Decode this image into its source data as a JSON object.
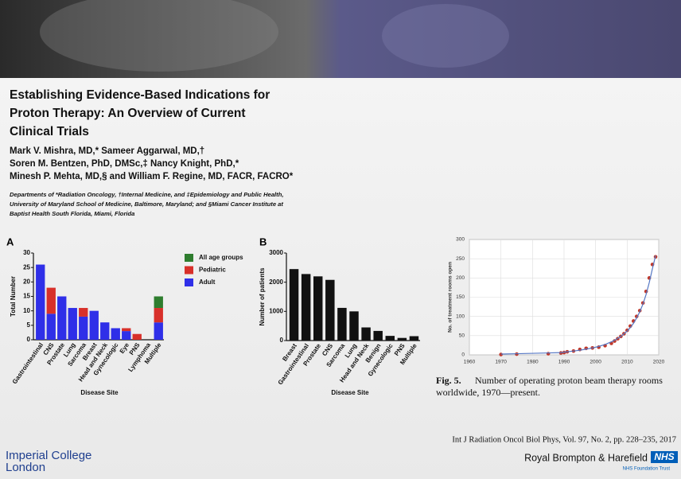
{
  "header": {
    "title_lines": [
      "Establishing Evidence-Based Indications for",
      "Proton Therapy: An Overview of Current",
      "Clinical Trials"
    ],
    "author_lines": [
      "Mark V. Mishra, MD,* Sameer Aggarwal, MD,†",
      "Soren M. Bentzen, PhD, DMSc,‡ Nancy Knight, PhD,*",
      "Minesh P. Mehta, MD,§ and William F. Regine, MD, FACR, FACRO*"
    ],
    "affiliation_lines": [
      "Departments of *Radiation Oncology, †Internal Medicine, and ‡Epidemiology and Public Health,",
      "University of Maryland School of Medicine, Baltimore, Maryland; and §Miami Cancer Institute at",
      "Baptist Health South Florida, Miami, Florida"
    ]
  },
  "chart_data": [
    {
      "type": "bar",
      "stacked": true,
      "panel": "A",
      "xlabel": "Disease Site",
      "ylabel": "Total Number",
      "categories": [
        "Gastrointestinal",
        "CNS",
        "Prostate",
        "Lung",
        "Sarcoma",
        "Breast",
        "Head and Neck",
        "Gynecologic",
        "Eye",
        "PNS",
        "Lymphoma",
        "Multiple"
      ],
      "series": [
        {
          "name": "Adult",
          "color": "#2f2fe8",
          "values": [
            26,
            9,
            15,
            11,
            8,
            10,
            6,
            4,
            3,
            0,
            0,
            6
          ]
        },
        {
          "name": "Pediatric",
          "color": "#d8302a",
          "values": [
            0,
            9,
            0,
            0,
            3,
            0,
            0,
            0,
            1,
            2,
            0,
            5
          ]
        },
        {
          "name": "All age groups",
          "color": "#2e7d2e",
          "values": [
            0,
            0,
            0,
            0,
            0,
            0,
            0,
            0,
            0,
            0,
            0,
            4
          ]
        }
      ],
      "ylim": [
        0,
        30
      ],
      "yticks": [
        0,
        5,
        10,
        15,
        20,
        25,
        30
      ]
    },
    {
      "type": "bar",
      "panel": "B",
      "xlabel": "Disease Site",
      "ylabel": "Number of patients",
      "color": "#111111",
      "categories": [
        "Breast",
        "Gastrointestinal",
        "Prostate",
        "CNS",
        "Sarcoma",
        "Lung",
        "Head and Neck",
        "Benign",
        "Gynecologic",
        "PNS",
        "Multiple"
      ],
      "values": [
        2450,
        2280,
        2200,
        2080,
        1120,
        1000,
        450,
        330,
        160,
        90,
        150
      ],
      "ylim": [
        0,
        3000
      ],
      "yticks": [
        0,
        1000,
        2000,
        3000
      ]
    },
    {
      "type": "scatter",
      "ylabel": "No. of treatment rooms open",
      "grid": true,
      "x": [
        1970,
        1975,
        1985,
        1989,
        1990,
        1991,
        1993,
        1995,
        1997,
        1999,
        2001,
        2003,
        2005,
        2006,
        2007,
        2008,
        2009,
        2010,
        2011,
        2012,
        2013,
        2014,
        2015,
        2016,
        2017,
        2018,
        2019
      ],
      "series": [
        {
          "mode": "markers",
          "color": "#c0392b",
          "values": [
            1,
            2,
            3,
            5,
            6,
            8,
            10,
            14,
            17,
            18,
            20,
            24,
            30,
            36,
            42,
            48,
            55,
            64,
            75,
            88,
            100,
            115,
            135,
            165,
            200,
            235,
            255
          ]
        },
        {
          "mode": "line",
          "color": "#5577c4",
          "values": [
            2,
            3,
            5,
            6,
            7,
            8,
            10,
            12,
            15,
            18,
            22,
            27,
            34,
            38,
            43,
            48,
            55,
            62,
            71,
            82,
            96,
            112,
            132,
            157,
            188,
            224,
            258
          ]
        }
      ],
      "xlim": [
        1960,
        2020
      ],
      "xticks": [
        1960,
        1970,
        1980,
        1990,
        2000,
        2010,
        2020
      ],
      "ylim": [
        0,
        300
      ],
      "yticks": [
        0,
        50,
        100,
        150,
        200,
        250,
        300
      ]
    }
  ],
  "caption": {
    "label": "Fig. 5.",
    "lines": [
      "Number of operating proton beam therapy rooms",
      "worldwide, 1970—present."
    ]
  },
  "citation": "Int J Radiation Oncol Biol Phys, Vol. 97, No. 2, pp. 228–235, 2017",
  "footer": {
    "left_lines": [
      "Imperial College",
      "London"
    ],
    "right": "Royal Brompton & Harefield",
    "badge": "NHS",
    "badge_sub": "NHS Foundation Trust"
  }
}
